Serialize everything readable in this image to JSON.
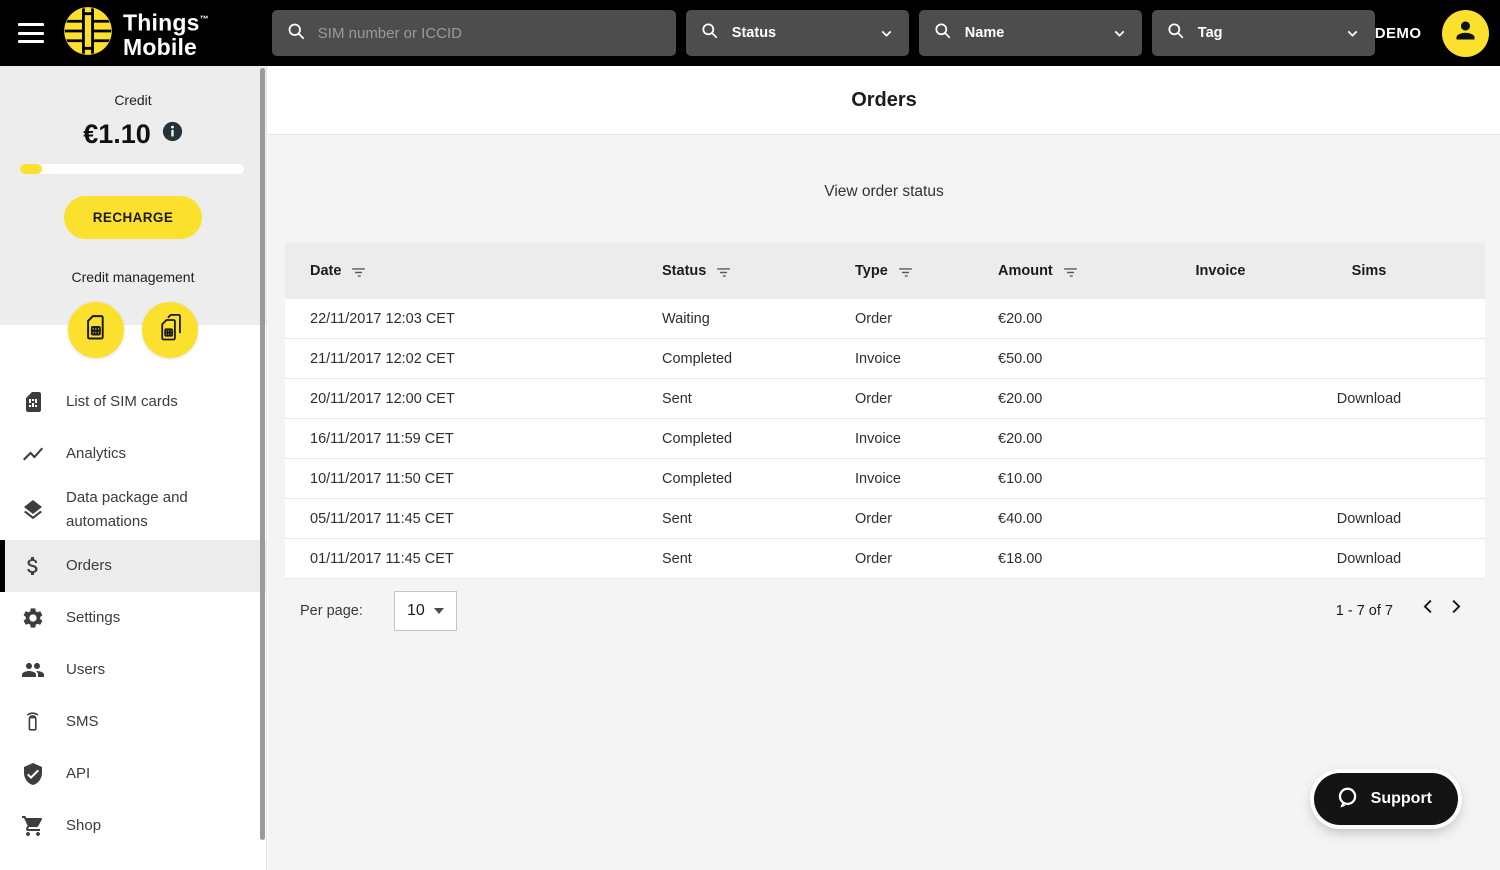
{
  "colors": {
    "brand_yellow": "#fbe02d",
    "header_black": "#000000",
    "page_gray": "#f4f4f4"
  },
  "header": {
    "menu_icon": "hamburger",
    "brand": {
      "line1": "Things",
      "tm": "TM",
      "line2": "Mobile"
    },
    "search": {
      "icon": "search",
      "placeholder": "SIM number or ICCID",
      "value": ""
    },
    "filters": [
      {
        "icon": "search",
        "label": "Status"
      },
      {
        "icon": "search",
        "label": "Name"
      },
      {
        "icon": "search",
        "label": "Tag"
      }
    ],
    "user": {
      "name": "DEMO",
      "avatar_icon": "person"
    }
  },
  "sidebar": {
    "credit": {
      "label": "Credit",
      "amount": "€1.10",
      "info_icon": "info",
      "progress_pct": 10,
      "recharge_label": "RECHARGE",
      "management_label": "Credit management",
      "management_icons": [
        "sim-single",
        "sim-multi"
      ]
    },
    "items": [
      {
        "icon": "sim-card",
        "label": "List of SIM cards"
      },
      {
        "icon": "analytics",
        "label": "Analytics"
      },
      {
        "icon": "layers",
        "label": "Data package and automations"
      },
      {
        "icon": "dollar",
        "label": "Orders",
        "active": true
      },
      {
        "icon": "gear",
        "label": "Settings"
      },
      {
        "icon": "users",
        "label": "Users"
      },
      {
        "icon": "sms",
        "label": "SMS"
      },
      {
        "icon": "shield",
        "label": "API"
      },
      {
        "icon": "cart",
        "label": "Shop"
      }
    ]
  },
  "main": {
    "title": "Orders",
    "subtitle": "View order status",
    "table": {
      "columns": [
        {
          "label": "Date",
          "filter": true
        },
        {
          "label": "Status",
          "filter": true
        },
        {
          "label": "Type",
          "filter": true
        },
        {
          "label": "Amount",
          "filter": true
        },
        {
          "label": "Invoice",
          "filter": false
        },
        {
          "label": "Sims",
          "filter": false
        }
      ],
      "rows": [
        {
          "date": "22/11/2017 12:03 CET",
          "status": "Waiting",
          "type": "Order",
          "amount": "€20.00",
          "invoice": "",
          "sims": ""
        },
        {
          "date": "21/11/2017 12:02 CET",
          "status": "Completed",
          "type": "Invoice",
          "amount": "€50.00",
          "invoice": "",
          "sims": ""
        },
        {
          "date": "20/11/2017 12:00 CET",
          "status": "Sent",
          "type": "Order",
          "amount": "€20.00",
          "invoice": "",
          "sims": "Download"
        },
        {
          "date": "16/11/2017 11:59 CET",
          "status": "Completed",
          "type": "Invoice",
          "amount": "€20.00",
          "invoice": "",
          "sims": ""
        },
        {
          "date": "10/11/2017 11:50 CET",
          "status": "Completed",
          "type": "Invoice",
          "amount": "€10.00",
          "invoice": "",
          "sims": ""
        },
        {
          "date": "05/11/2017 11:45 CET",
          "status": "Sent",
          "type": "Order",
          "amount": "€40.00",
          "invoice": "",
          "sims": "Download"
        },
        {
          "date": "01/11/2017 11:45 CET",
          "status": "Sent",
          "type": "Order",
          "amount": "€18.00",
          "invoice": "",
          "sims": "Download"
        }
      ]
    },
    "pagination": {
      "per_page_label": "Per page:",
      "per_page_value": "10",
      "range_label": "1 - 7 of 7",
      "nav_icons": [
        "chevron-left",
        "chevron-right"
      ]
    },
    "support": {
      "icon": "chat-bubble",
      "label": "Support"
    }
  }
}
